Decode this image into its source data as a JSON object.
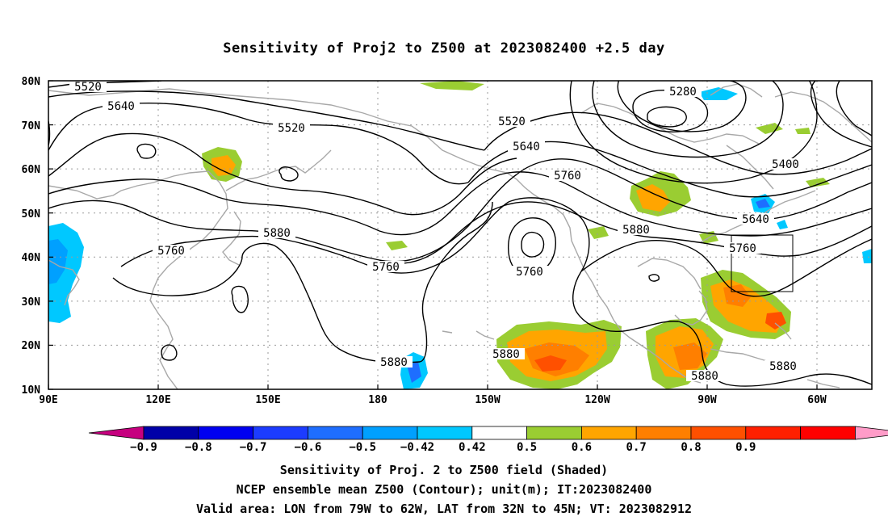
{
  "title": "Sensitivity of Proj2 to Z500 at 2023082400 +2.5 day",
  "lat_labels": [
    "80N",
    "70N",
    "60N",
    "50N",
    "40N",
    "30N",
    "20N",
    "10N"
  ],
  "lon_labels": [
    "90E",
    "120E",
    "150E",
    "180",
    "150W",
    "120W",
    "90W",
    "60W"
  ],
  "contour_labels": [
    {
      "text": "5520"
    },
    {
      "text": "5640"
    },
    {
      "text": "5520"
    },
    {
      "text": "5280"
    },
    {
      "text": "5520"
    },
    {
      "text": "5640"
    },
    {
      "text": "5760"
    },
    {
      "text": "5400"
    },
    {
      "text": "5640"
    },
    {
      "text": "5760"
    },
    {
      "text": "5880"
    },
    {
      "text": "5880"
    },
    {
      "text": "5760"
    },
    {
      "text": "5760"
    },
    {
      "text": "5760"
    },
    {
      "text": "5880"
    },
    {
      "text": "5880"
    },
    {
      "text": "5880"
    },
    {
      "text": "5880"
    }
  ],
  "colorbar": {
    "colors": [
      "#c6007f",
      "#0000a8",
      "#0000f0",
      "#1c3cff",
      "#1e6eff",
      "#00a0ff",
      "#00c8ff",
      "#ffffff",
      "#9acd32",
      "#ffa500",
      "#ff7f00",
      "#ff5000",
      "#ff2000",
      "#ff0000",
      "#ff9cc8"
    ],
    "labels": [
      "-0.9",
      "-0.8",
      "-0.7",
      "-0.6",
      "-0.5",
      "-0.42",
      "0.42",
      "0.5",
      "0.6",
      "0.7",
      "0.8",
      "0.9"
    ]
  },
  "caption": {
    "line1": "Sensitivity of Proj. 2 to Z500 field (Shaded)",
    "line2": "NCEP ensemble mean Z500 (Contour); unit(m); IT:2023082400",
    "line3": "Valid area: LON from 79W to 62W, LAT from 32N to 45N; VT: 2023082912"
  },
  "map_data": {
    "valid_area": {
      "lon_from": "79W",
      "lon_to": "62W",
      "lat_from": "32N",
      "lat_to": "45N"
    },
    "shading_field": "Sensitivity of Proj. 2 to Z500",
    "contour_field": "NCEP ensemble mean Z500",
    "contour_unit": "m"
  }
}
